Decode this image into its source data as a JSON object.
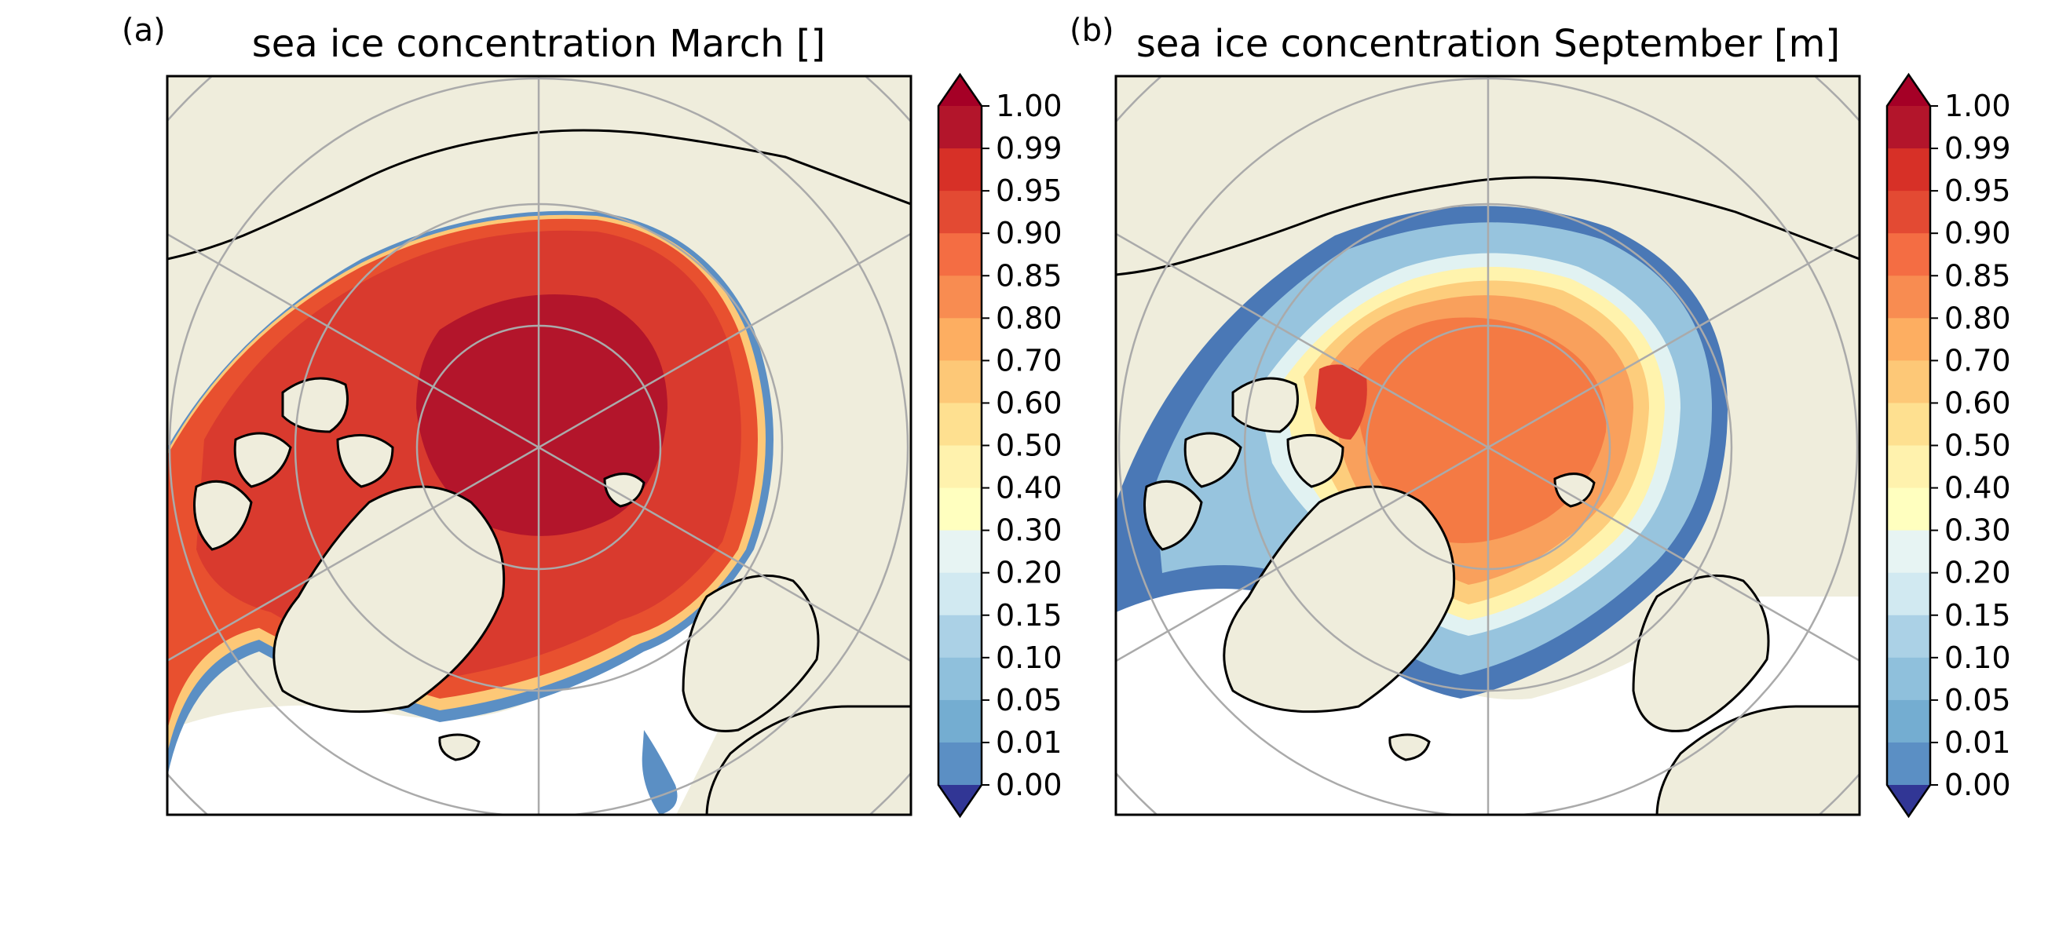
{
  "panels": [
    {
      "id": "a",
      "label": "(a)",
      "title": "sea ice concentration March []",
      "month": "March",
      "ice_colors": [
        "#b3152b",
        "#c92a2c",
        "#d93a2e",
        "#e8502f"
      ]
    },
    {
      "id": "b",
      "label": "(b)",
      "title": "sea ice concentration September [m]",
      "month": "September",
      "ice_colors": [
        "#f47a44",
        "#f9a05c",
        "#fdcd7c",
        "#fff3ad",
        "#e1f2f2",
        "#bfdde9",
        "#97c4de",
        "#6aa0cc",
        "#4a78b6"
      ]
    }
  ],
  "colorbar": {
    "ticks": [
      "1.00",
      "0.99",
      "0.95",
      "0.90",
      "0.85",
      "0.80",
      "0.70",
      "0.60",
      "0.50",
      "0.40",
      "0.30",
      "0.20",
      "0.15",
      "0.10",
      "0.05",
      "0.01",
      "0.00"
    ],
    "colors": [
      "#b3152b",
      "#d73027",
      "#e34a33",
      "#f46d43",
      "#f88c51",
      "#fdae61",
      "#fdc877",
      "#fee090",
      "#fff2ad",
      "#ffffbf",
      "#e7f4f3",
      "#d1e9f1",
      "#abd1e6",
      "#8fc0dc",
      "#74add1",
      "#5b8fc4",
      "#4571b4",
      "#3a57a6"
    ],
    "extend_max_color": "#a50026",
    "extend_min_color": "#313695"
  },
  "map": {
    "land_color": "#efeddc",
    "ocean_color": "#ffffff",
    "grid_color": "#aaaaaa",
    "coast_color": "#000000"
  }
}
